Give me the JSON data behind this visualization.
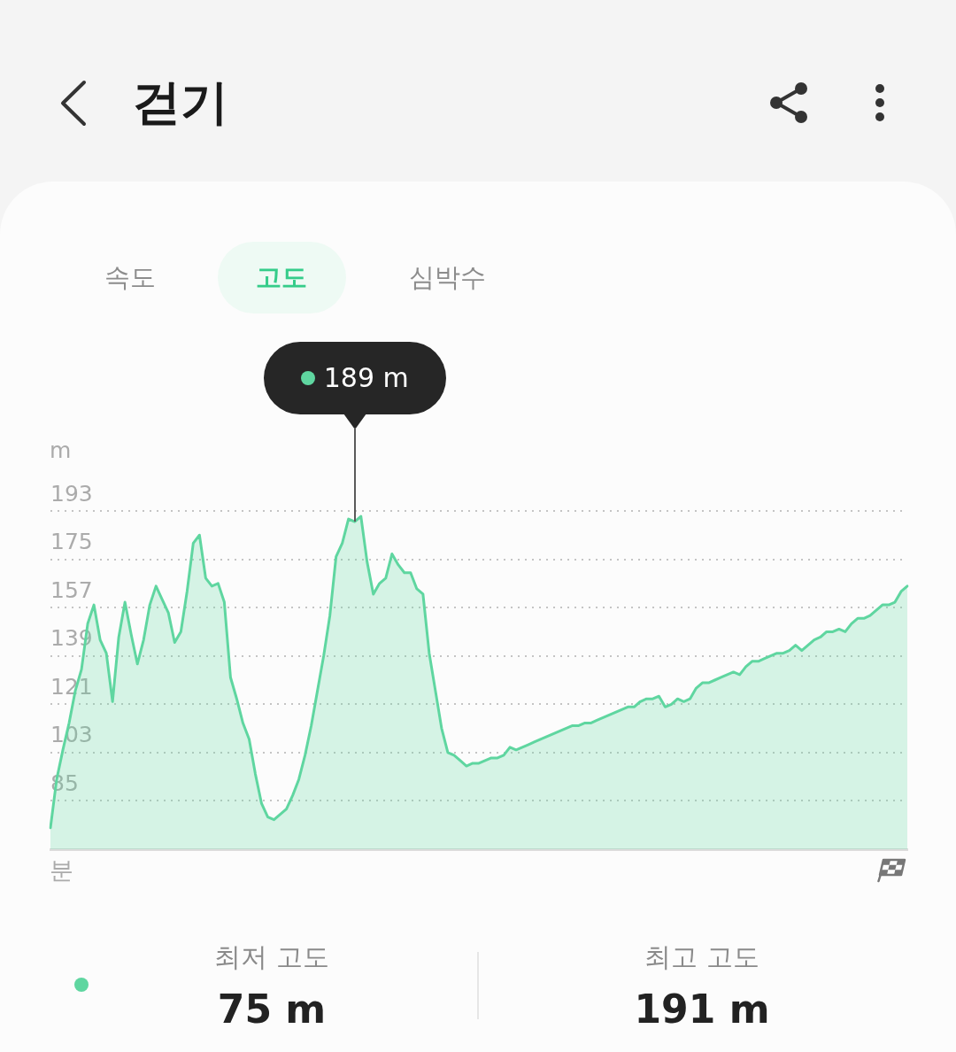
{
  "chart_data": {
    "type": "area",
    "title": "걷기",
    "xlabel": "분",
    "ylabel": "m",
    "annotations": [
      "속도",
      "고도",
      "심박수",
      "최저 고도",
      "75 m",
      "최고 고도",
      "191 m",
      "189 m"
    ],
    "categories": [
      null,
      null,
      null,
      null,
      null,
      null,
      null,
      null,
      null,
      null,
      null,
      null,
      null,
      null,
      null,
      null,
      null,
      null,
      null,
      null,
      null,
      null,
      null,
      null,
      null,
      null,
      null,
      null,
      null,
      null,
      null,
      null,
      null,
      null,
      null,
      null,
      null,
      null,
      null,
      null,
      null,
      null,
      null,
      null,
      null,
      null,
      null,
      null,
      null,
      null,
      null,
      null,
      null,
      null,
      null,
      null,
      null,
      null,
      null,
      null,
      null,
      null,
      null,
      null,
      null,
      null,
      null,
      null,
      null,
      null,
      null,
      null,
      null,
      null,
      null,
      null,
      null,
      null,
      null,
      null,
      null,
      null,
      null,
      null,
      null,
      null,
      null,
      null,
      null,
      null,
      null,
      null,
      null,
      null,
      null,
      null,
      null,
      null,
      null,
      null,
      null,
      null,
      null,
      null,
      null,
      null,
      null,
      null,
      null,
      null,
      null,
      null,
      null,
      null,
      null,
      null,
      null,
      null,
      null,
      null,
      null,
      null,
      null,
      null,
      null,
      null,
      null,
      null,
      null,
      null,
      null,
      null,
      null,
      null,
      null,
      null,
      null,
      null,
      null
    ],
    "series": [
      {
        "color": "#5fd6a0",
        "values": [
          75,
          93,
          104,
          114,
          126,
          134,
          151,
          158,
          145,
          140,
          122,
          146,
          159,
          147,
          136,
          145,
          158,
          165,
          160,
          155,
          144,
          148,
          163,
          181,
          184,
          168,
          165,
          166,
          159,
          131,
          123,
          114,
          108,
          95,
          84,
          79,
          78,
          80,
          82,
          87,
          93,
          102,
          113,
          126,
          139,
          154,
          176,
          181,
          190,
          189,
          191,
          174,
          162,
          166,
          168,
          177,
          173,
          170,
          170,
          164,
          162,
          140,
          126,
          112,
          103,
          102,
          100,
          98,
          99,
          99,
          100,
          101,
          101,
          102,
          105,
          104,
          105,
          106,
          107,
          108,
          109,
          110,
          111,
          112,
          113,
          113,
          114,
          114,
          115,
          116,
          117,
          118,
          119,
          120,
          120,
          122,
          123,
          123,
          124,
          120,
          121,
          123,
          122,
          123,
          127,
          129,
          129,
          130,
          131,
          132,
          133,
          132,
          135,
          137,
          137,
          138,
          139,
          140,
          140,
          141,
          143,
          141,
          143,
          145,
          146,
          148,
          148,
          149,
          148,
          151,
          153,
          153,
          154,
          156,
          158,
          158,
          159,
          163,
          165
        ]
      }
    ],
    "ylim": [
      67,
      193
    ],
    "yticks": [
      85,
      103,
      121,
      139,
      157,
      175,
      193
    ],
    "grid": "y",
    "legend": false,
    "marker": "none",
    "tick_labels": "y"
  }
}
